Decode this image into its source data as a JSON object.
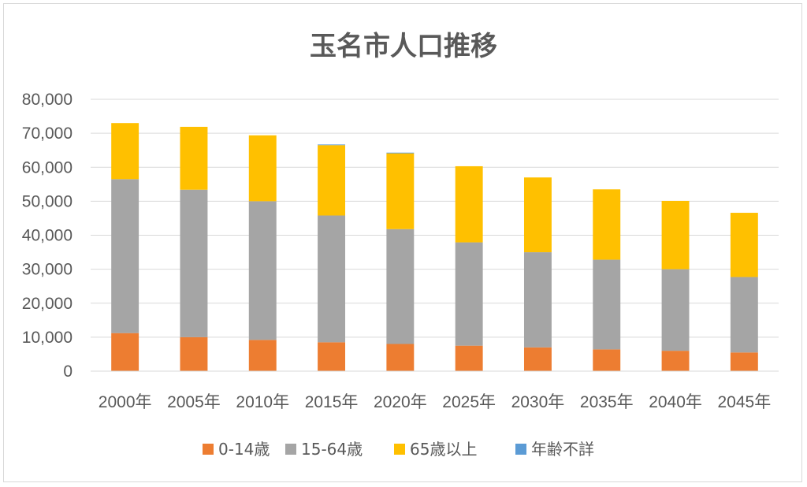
{
  "chart_data": {
    "type": "bar",
    "stacked": true,
    "title": "玉名市人口推移",
    "xlabel": "",
    "ylabel": "",
    "categories": [
      "2000年",
      "2005年",
      "2010年",
      "2015年",
      "2020年",
      "2025年",
      "2030年",
      "2035年",
      "2040年",
      "2045年"
    ],
    "y_ticks": [
      "0",
      "10,000",
      "20,000",
      "30,000",
      "40,000",
      "50,000",
      "60,000",
      "70,000",
      "80,000"
    ],
    "ylim": [
      0,
      80000
    ],
    "grid": true,
    "legend_position": "bottom",
    "series": [
      {
        "name": "0-14歳",
        "color": "#ED7D31",
        "values": [
          11200,
          10000,
          9200,
          8500,
          8000,
          7500,
          7000,
          6400,
          6000,
          5500
        ]
      },
      {
        "name": "15-64歳",
        "color": "#A5A5A5",
        "values": [
          45300,
          43400,
          40800,
          37300,
          33800,
          30400,
          28000,
          26400,
          24000,
          22200
        ]
      },
      {
        "name": "65歳以上",
        "color": "#FFC000",
        "values": [
          16500,
          18500,
          19400,
          20700,
          22300,
          22400,
          22000,
          20700,
          20100,
          18900
        ]
      },
      {
        "name": "年齢不詳",
        "color": "#5B9BD5",
        "values": [
          0,
          0,
          0,
          200,
          200,
          0,
          0,
          0,
          0,
          0
        ]
      }
    ]
  }
}
